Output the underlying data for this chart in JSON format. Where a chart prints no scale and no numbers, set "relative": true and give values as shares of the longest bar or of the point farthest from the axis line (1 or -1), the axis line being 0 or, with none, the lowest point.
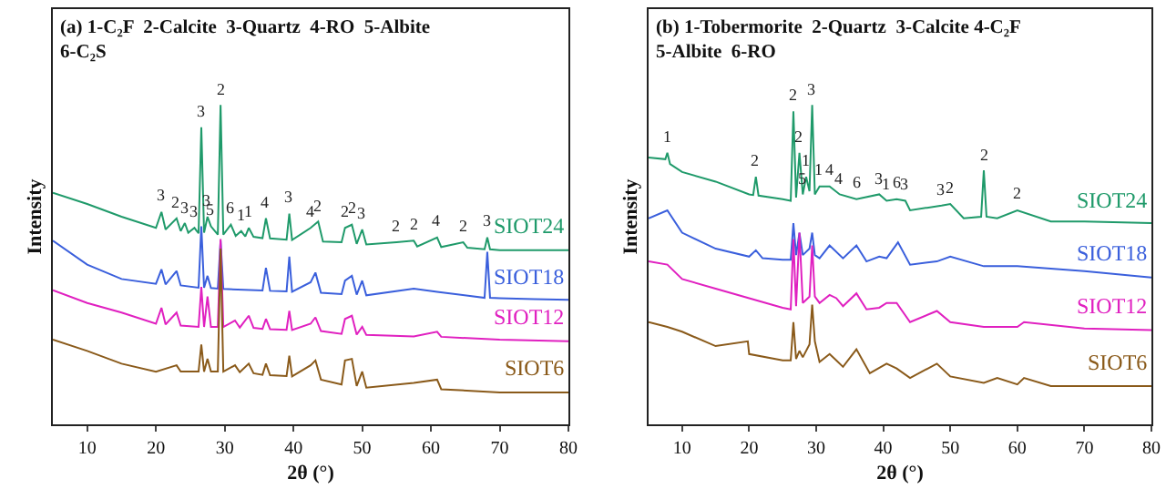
{
  "chart_data": [
    {
      "type": "line",
      "relative": true,
      "title": "(a) 1-C₂F  2-Calcite  3-Quartz  4-RO  5-Albite  6-C₂S",
      "xlabel": "2θ (°)",
      "ylabel": "Intensity",
      "xlim": [
        5,
        80
      ],
      "xticks": [
        10,
        20,
        30,
        40,
        50,
        60,
        70,
        80
      ],
      "tick_labels": "x",
      "grid": false,
      "legend": false,
      "marker": "none",
      "line_style": "solid",
      "series": [
        {
          "name": "SIOT24",
          "color": "#1f9a6a",
          "x": [
            5,
            10,
            15,
            20,
            20.8,
            21.4,
            23,
            23.6,
            24.2,
            24.7,
            25.6,
            26.2,
            26.6,
            27,
            27.5,
            28,
            29,
            29.4,
            29.8,
            30.9,
            31.6,
            32.4,
            33,
            33.5,
            34.2,
            35.5,
            36,
            36.6,
            39,
            39.4,
            39.8,
            42.5,
            43.6,
            44.3,
            47,
            47.5,
            48.5,
            49.2,
            50,
            50.6,
            55,
            57.5,
            58,
            60.9,
            61.5,
            64.7,
            65.3,
            67.8,
            68.2,
            68.6,
            70,
            75,
            80
          ],
          "values": [
            0.725,
            0.69,
            0.65,
            0.615,
            0.665,
            0.61,
            0.645,
            0.605,
            0.63,
            0.6,
            0.615,
            0.598,
            0.93,
            0.6,
            0.65,
            0.62,
            0.594,
            1.0,
            0.594,
            0.625,
            0.59,
            0.605,
            0.588,
            0.615,
            0.587,
            0.583,
            0.645,
            0.582,
            0.578,
            0.66,
            0.577,
            0.615,
            0.635,
            0.572,
            0.57,
            0.615,
            0.625,
            0.565,
            0.61,
            0.563,
            0.57,
            0.575,
            0.557,
            0.585,
            0.555,
            0.57,
            0.553,
            0.548,
            0.585,
            0.548,
            0.545,
            0.545,
            0.545
          ]
        },
        {
          "name": "SIOT18",
          "color": "#3a5fdc",
          "x": [
            5,
            10,
            15,
            20,
            20.8,
            21.4,
            23,
            23.6,
            26.2,
            26.6,
            27,
            27.5,
            28,
            29,
            29.4,
            29.8,
            35.5,
            36,
            36.6,
            39,
            39.4,
            39.8,
            42.5,
            43.2,
            44,
            47,
            47.5,
            48.5,
            49.2,
            50,
            50.6,
            57.5,
            60.9,
            67.8,
            68.2,
            68.6,
            70,
            75,
            80
          ],
          "values": [
            0.575,
            0.5,
            0.455,
            0.44,
            0.485,
            0.438,
            0.48,
            0.435,
            0.428,
            0.62,
            0.428,
            0.465,
            0.427,
            0.425,
            0.575,
            0.424,
            0.419,
            0.49,
            0.418,
            0.416,
            0.525,
            0.415,
            0.445,
            0.475,
            0.412,
            0.408,
            0.45,
            0.465,
            0.406,
            0.45,
            0.404,
            0.425,
            0.415,
            0.396,
            0.54,
            0.396,
            0.395,
            0.392,
            0.39
          ]
        },
        {
          "name": "SIOT12",
          "color": "#e020c0",
          "x": [
            5,
            10,
            15,
            20,
            20.8,
            21.4,
            23,
            23.6,
            26.2,
            26.6,
            27,
            27.5,
            28,
            29,
            29.4,
            29.8,
            31.5,
            32.2,
            33.5,
            34.2,
            35.5,
            36,
            36.6,
            39,
            39.4,
            39.8,
            42.5,
            43.2,
            44,
            47,
            47.5,
            48.5,
            49.2,
            50,
            50.6,
            57.5,
            60.9,
            61.5,
            70,
            80
          ],
          "values": [
            0.42,
            0.38,
            0.35,
            0.315,
            0.365,
            0.313,
            0.35,
            0.309,
            0.305,
            0.43,
            0.305,
            0.4,
            0.305,
            0.305,
            0.58,
            0.305,
            0.325,
            0.303,
            0.34,
            0.302,
            0.299,
            0.33,
            0.298,
            0.296,
            0.355,
            0.295,
            0.315,
            0.335,
            0.292,
            0.283,
            0.33,
            0.34,
            0.281,
            0.305,
            0.28,
            0.275,
            0.29,
            0.274,
            0.265,
            0.26
          ]
        },
        {
          "name": "SIOT6",
          "color": "#8a5a1a",
          "x": [
            5,
            10,
            15,
            20,
            23,
            23.6,
            26.2,
            26.6,
            27,
            27.5,
            28,
            29,
            29.4,
            29.8,
            31.5,
            32.2,
            33.5,
            34.2,
            35.5,
            36,
            36.6,
            39,
            39.4,
            39.8,
            42.5,
            43.2,
            44,
            47,
            47.5,
            48.5,
            49.2,
            50,
            50.6,
            57.5,
            60.9,
            61.5,
            70,
            80
          ],
          "values": [
            0.265,
            0.23,
            0.19,
            0.165,
            0.185,
            0.165,
            0.165,
            0.25,
            0.165,
            0.205,
            0.165,
            0.165,
            0.55,
            0.165,
            0.185,
            0.163,
            0.19,
            0.16,
            0.155,
            0.19,
            0.154,
            0.151,
            0.215,
            0.15,
            0.185,
            0.2,
            0.14,
            0.125,
            0.2,
            0.205,
            0.12,
            0.165,
            0.115,
            0.13,
            0.14,
            0.11,
            0.1,
            0.1
          ]
        }
      ],
      "annotations": [
        {
          "text": "3",
          "x": 20.8,
          "y": 0.665
        },
        {
          "text": "2",
          "x": 23,
          "y": 0.645
        },
        {
          "text": "3",
          "x": 24.2,
          "y": 0.63
        },
        {
          "text": "3",
          "x": 25.6,
          "y": 0.615
        },
        {
          "text": "3",
          "x": 26.6,
          "y": 0.93
        },
        {
          "text": "2",
          "x": 29.4,
          "y": 1.0
        },
        {
          "text": "3",
          "x": 27.5,
          "y": 0.65
        },
        {
          "text": "5",
          "x": 28,
          "y": 0.62
        },
        {
          "text": "6",
          "x": 30.9,
          "y": 0.625
        },
        {
          "text": "1",
          "x": 32.4,
          "y": 0.605
        },
        {
          "text": "1",
          "x": 33.5,
          "y": 0.615
        },
        {
          "text": "4",
          "x": 36,
          "y": 0.645
        },
        {
          "text": "3",
          "x": 39.4,
          "y": 0.66
        },
        {
          "text": "4",
          "x": 42.5,
          "y": 0.615
        },
        {
          "text": "2",
          "x": 43.6,
          "y": 0.635
        },
        {
          "text": "2",
          "x": 47.5,
          "y": 0.615
        },
        {
          "text": "2",
          "x": 48.5,
          "y": 0.625
        },
        {
          "text": "3",
          "x": 50,
          "y": 0.61
        },
        {
          "text": "2",
          "x": 55,
          "y": 0.57
        },
        {
          "text": "2",
          "x": 57.5,
          "y": 0.575
        },
        {
          "text": "4",
          "x": 60.9,
          "y": 0.585
        },
        {
          "text": "2",
          "x": 64.7,
          "y": 0.57
        },
        {
          "text": "3",
          "x": 68.2,
          "y": 0.585
        }
      ]
    },
    {
      "type": "line",
      "relative": true,
      "title": "(b) 1-Tobermorite  2-Quartz  3-Calcite 4-C₂F  5-Albite  6-RO",
      "xlabel": "2θ (°)",
      "ylabel": "Intensity",
      "xlim": [
        5,
        80
      ],
      "xticks": [
        10,
        20,
        30,
        40,
        50,
        60,
        70,
        80
      ],
      "tick_labels": "x",
      "grid": false,
      "legend": false,
      "marker": "none",
      "line_style": "solid",
      "series": [
        {
          "name": "SIOT24",
          "color": "#1f9a6a",
          "x": [
            5,
            7.5,
            7.8,
            8.2,
            10,
            15,
            20,
            20.6,
            21,
            21.4,
            25,
            26.2,
            26.6,
            27,
            27.5,
            28,
            28.5,
            29,
            29.4,
            29.8,
            30.5,
            32,
            33.5,
            36,
            39.4,
            40.5,
            42,
            43.3,
            44,
            48.7,
            50,
            52,
            54.6,
            55,
            55.4,
            57,
            60,
            65,
            70,
            80
          ],
          "values": [
            0.835,
            0.83,
            0.85,
            0.815,
            0.79,
            0.76,
            0.72,
            0.718,
            0.775,
            0.716,
            0.705,
            0.7,
            0.98,
            0.71,
            0.85,
            0.72,
            0.775,
            0.73,
            1.0,
            0.72,
            0.745,
            0.745,
            0.72,
            0.705,
            0.72,
            0.7,
            0.705,
            0.7,
            0.67,
            0.685,
            0.69,
            0.645,
            0.65,
            0.795,
            0.65,
            0.645,
            0.67,
            0.635,
            0.635,
            0.63
          ]
        },
        {
          "name": "SIOT18",
          "color": "#3a5fdc",
          "x": [
            5,
            7.8,
            10,
            15,
            20,
            21,
            22,
            25,
            26.2,
            26.6,
            27,
            27.5,
            28,
            29,
            29.4,
            29.8,
            30.5,
            32,
            34,
            36,
            37.5,
            39.4,
            40.5,
            42.2,
            44,
            48,
            50,
            55,
            60,
            70,
            80
          ],
          "values": [
            0.645,
            0.67,
            0.6,
            0.55,
            0.525,
            0.545,
            0.52,
            0.515,
            0.515,
            0.63,
            0.53,
            0.6,
            0.53,
            0.55,
            0.6,
            0.53,
            0.52,
            0.56,
            0.52,
            0.56,
            0.51,
            0.525,
            0.52,
            0.57,
            0.5,
            0.51,
            0.525,
            0.495,
            0.495,
            0.48,
            0.46
          ]
        },
        {
          "name": "SIOT12",
          "color": "#e020c0",
          "x": [
            5,
            7.8,
            10,
            15,
            20,
            25,
            26.2,
            26.6,
            27,
            27.5,
            28,
            29,
            29.4,
            29.8,
            30.5,
            32,
            33,
            34,
            36,
            37.5,
            39.4,
            40.5,
            42,
            44,
            48,
            50,
            55,
            60,
            61,
            70,
            80
          ],
          "values": [
            0.51,
            0.5,
            0.455,
            0.425,
            0.395,
            0.365,
            0.36,
            0.58,
            0.37,
            0.6,
            0.38,
            0.4,
            0.56,
            0.4,
            0.38,
            0.405,
            0.395,
            0.37,
            0.41,
            0.36,
            0.365,
            0.38,
            0.38,
            0.32,
            0.355,
            0.32,
            0.305,
            0.305,
            0.32,
            0.3,
            0.295
          ]
        },
        {
          "name": "SIOT6",
          "color": "#8a5a1a",
          "x": [
            5,
            7.8,
            10,
            15,
            19.8,
            20,
            25,
            26.2,
            26.6,
            27,
            27.5,
            28,
            29,
            29.4,
            29.8,
            30.5,
            32,
            33,
            34,
            36,
            38,
            40.5,
            42,
            44,
            48,
            50,
            55,
            57,
            60,
            61,
            65,
            70,
            80
          ],
          "values": [
            0.32,
            0.305,
            0.29,
            0.245,
            0.26,
            0.22,
            0.2,
            0.2,
            0.32,
            0.205,
            0.23,
            0.21,
            0.25,
            0.375,
            0.26,
            0.195,
            0.22,
            0.2,
            0.18,
            0.235,
            0.16,
            0.19,
            0.175,
            0.145,
            0.19,
            0.15,
            0.13,
            0.145,
            0.125,
            0.145,
            0.12,
            0.12,
            0.12
          ]
        }
      ],
      "annotations": [
        {
          "text": "1",
          "x": 7.8,
          "y": 0.85
        },
        {
          "text": "2",
          "x": 21,
          "y": 0.775
        },
        {
          "text": "2",
          "x": 26.6,
          "y": 0.98
        },
        {
          "text": "3",
          "x": 29.4,
          "y": 1.0
        },
        {
          "text": "2",
          "x": 27.5,
          "y": 0.85
        },
        {
          "text": "1",
          "x": 28.5,
          "y": 0.775
        },
        {
          "text": "5",
          "x": 28,
          "y": 0.72
        },
        {
          "text": "1",
          "x": 30.5,
          "y": 0.745
        },
        {
          "text": "4",
          "x": 32,
          "y": 0.745
        },
        {
          "text": "4",
          "x": 33.5,
          "y": 0.72
        },
        {
          "text": "6",
          "x": 36,
          "y": 0.705
        },
        {
          "text": "3",
          "x": 39.4,
          "y": 0.72
        },
        {
          "text": "1",
          "x": 40.5,
          "y": 0.7
        },
        {
          "text": "6",
          "x": 42,
          "y": 0.705
        },
        {
          "text": "3",
          "x": 43.3,
          "y": 0.7
        },
        {
          "text": "3",
          "x": 48.7,
          "y": 0.685
        },
        {
          "text": "2",
          "x": 50,
          "y": 0.69
        },
        {
          "text": "2",
          "x": 55,
          "y": 0.795
        },
        {
          "text": "2",
          "x": 60,
          "y": 0.67
        }
      ]
    }
  ]
}
